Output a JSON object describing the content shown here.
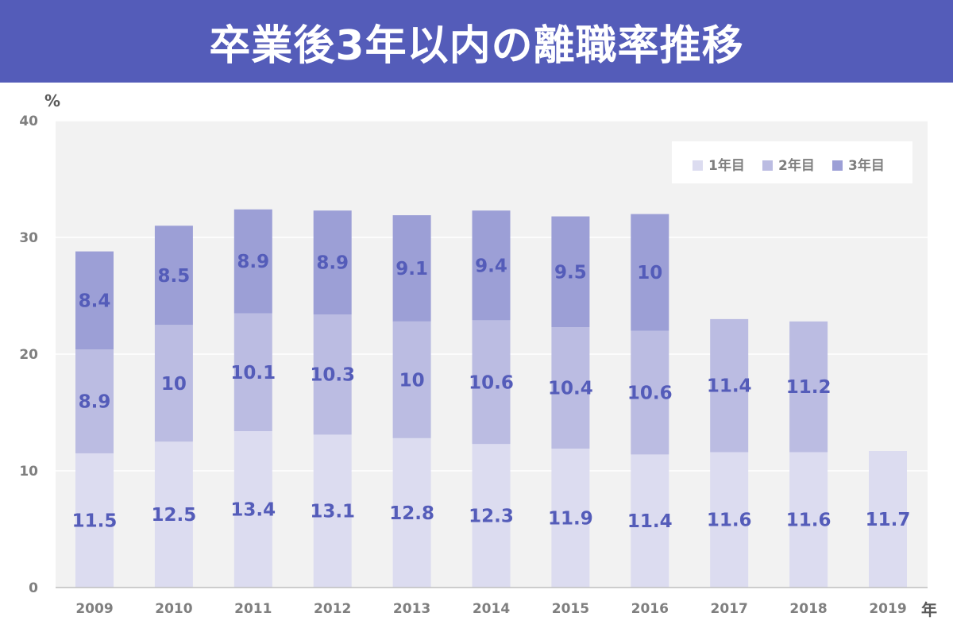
{
  "title": "卒業後3年以内の離職率推移",
  "chart_data": {
    "type": "bar",
    "stacked": true,
    "y_unit": "%",
    "x_unit": "年",
    "ylim": [
      0,
      40
    ],
    "y_ticks": [
      0,
      10,
      20,
      30,
      40
    ],
    "grid": true,
    "legend_position": "top-right",
    "categories": [
      "2009",
      "2010",
      "2011",
      "2012",
      "2013",
      "2014",
      "2015",
      "2016",
      "2017",
      "2018",
      "2019"
    ],
    "series": [
      {
        "name": "1年目",
        "color": "#dcdcf0",
        "values": [
          11.5,
          12.5,
          13.4,
          13.1,
          12.8,
          12.3,
          11.9,
          11.4,
          11.6,
          11.6,
          11.7
        ]
      },
      {
        "name": "2年目",
        "color": "#bbbce2",
        "values": [
          8.9,
          10,
          10.1,
          10.3,
          10,
          10.6,
          10.4,
          10.6,
          11.4,
          11.2,
          null
        ]
      },
      {
        "name": "3年目",
        "color": "#9c9fd6",
        "values": [
          8.4,
          8.5,
          8.9,
          8.9,
          9.1,
          9.4,
          9.5,
          10,
          null,
          null,
          null
        ]
      }
    ]
  }
}
